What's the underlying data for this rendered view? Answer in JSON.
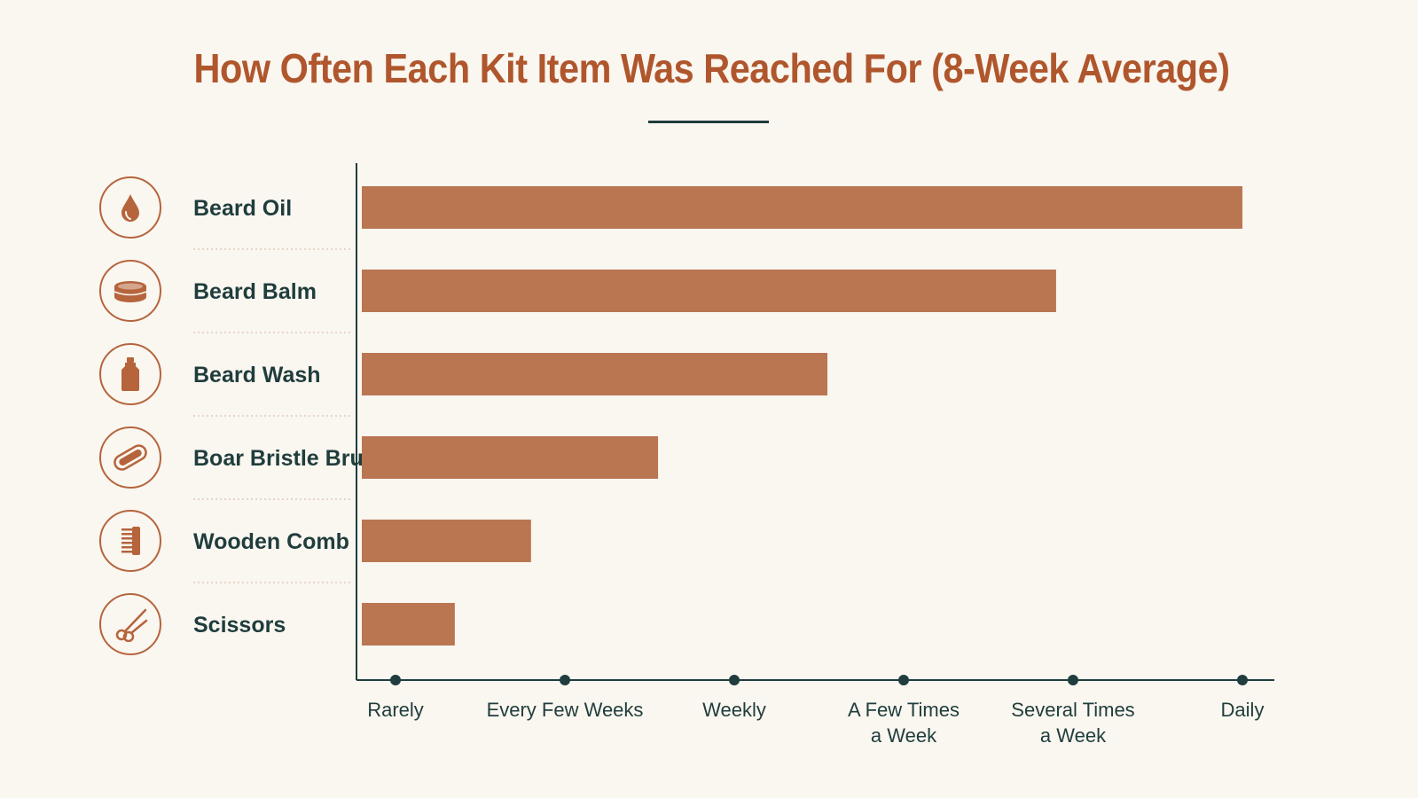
{
  "chart_data": {
    "type": "bar",
    "orientation": "horizontal",
    "title": "How Often Each Kit Item Was Reached For (8-Week Average)",
    "categories": [
      "Beard Oil",
      "Beard Balm",
      "Beard Wash",
      "Boar Bristle Brush",
      "Wooden Comb",
      "Scissors"
    ],
    "category_icons": [
      "droplet-icon",
      "balm-tin-icon",
      "wash-bottle-icon",
      "brush-icon",
      "comb-icon",
      "scissors-icon"
    ],
    "values": [
      5,
      3.9,
      2.55,
      1.55,
      0.8,
      0.35
    ],
    "x_ticks": [
      {
        "value": 0,
        "lines": [
          "Rarely"
        ]
      },
      {
        "value": 1,
        "lines": [
          "Every Few Weeks"
        ]
      },
      {
        "value": 2,
        "lines": [
          "Weekly"
        ]
      },
      {
        "value": 3,
        "lines": [
          "A Few Times",
          "a Week"
        ]
      },
      {
        "value": 4,
        "lines": [
          "Several Times",
          "a Week"
        ]
      },
      {
        "value": 5,
        "lines": [
          "Daily"
        ]
      }
    ],
    "xlim": [
      0,
      5
    ],
    "xlabel": "",
    "ylabel": "",
    "grid": false,
    "colors": {
      "bar": "#b97651",
      "title": "#b0562c",
      "text": "#1f3d3c",
      "axis": "#1f3d3c",
      "icon": "#b5643c",
      "separator": "#d9c4b4"
    }
  }
}
